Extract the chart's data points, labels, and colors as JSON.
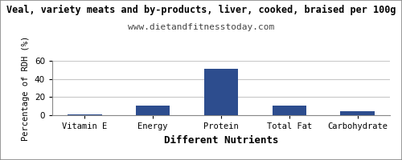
{
  "title": "Veal, variety meats and by-products, liver, cooked, braised per 100g",
  "subtitle": "www.dietandfitnesstoday.com",
  "xlabel": "Different Nutrients",
  "ylabel": "Percentage of RDH (%)",
  "categories": [
    "Vitamin E",
    "Energy",
    "Protein",
    "Total Fat",
    "Carbohydrate"
  ],
  "values": [
    0.5,
    11,
    51,
    11,
    4
  ],
  "bar_color": "#2d4d8e",
  "ylim": [
    0,
    60
  ],
  "yticks": [
    0,
    20,
    40,
    60
  ],
  "background_color": "#ffffff",
  "grid_color": "#c8c8c8",
  "title_fontsize": 8.5,
  "subtitle_fontsize": 8.0,
  "xlabel_fontsize": 9,
  "ylabel_fontsize": 7.5,
  "tick_fontsize": 7.5,
  "border_color": "#888888"
}
